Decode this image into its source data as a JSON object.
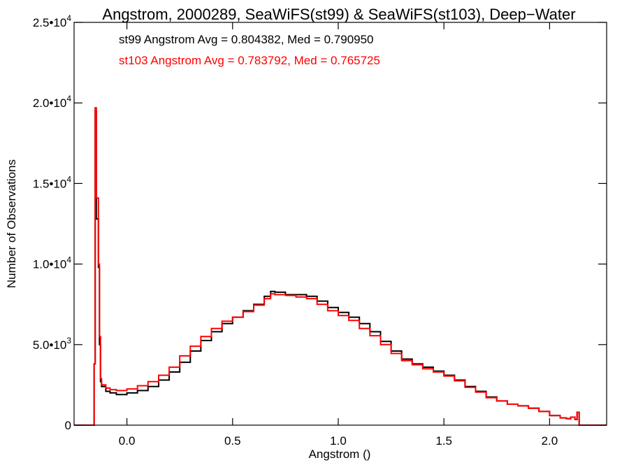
{
  "chart_data": {
    "type": "line",
    "title": "Angstrom, 2000289, SeaWiFS(st99) & SeaWiFS(st103), Deep−Water",
    "xlabel": "Angstrom ()",
    "ylabel": "Number of Observations",
    "xlim": [
      -0.25,
      2.27
    ],
    "ylim": [
      0,
      25000
    ],
    "x_ticks": [
      0.0,
      0.5,
      1.0,
      1.5,
      2.0
    ],
    "x_tick_labels": [
      "0.0",
      "0.5",
      "1.0",
      "1.5",
      "2.0"
    ],
    "y_ticks": [
      0,
      5000,
      10000,
      15000,
      20000,
      25000
    ],
    "y_tick_labels": [
      {
        "mantissa": "0",
        "exponent": ""
      },
      {
        "mantissa": "5.0•10",
        "exponent": "3"
      },
      {
        "mantissa": "1.0•10",
        "exponent": "4"
      },
      {
        "mantissa": "1.5•10",
        "exponent": "4"
      },
      {
        "mantissa": "2.0•10",
        "exponent": "4"
      },
      {
        "mantissa": "2.5•10",
        "exponent": "4"
      }
    ],
    "grid": false,
    "annotations": [
      {
        "text": "st99 Angstrom Avg = 0.804382, Med = 0.790950",
        "color": "#000000"
      },
      {
        "text": "st103 Angstrom Avg = 0.783792, Med = 0.765725",
        "color": "#ff0000"
      }
    ],
    "series": [
      {
        "color": "#000000",
        "step": true,
        "points": [
          [
            -0.25,
            0
          ],
          [
            -0.16,
            0
          ],
          [
            -0.155,
            3800
          ],
          [
            -0.15,
            19500
          ],
          [
            -0.145,
            12800
          ],
          [
            -0.14,
            12800
          ],
          [
            -0.135,
            9800
          ],
          [
            -0.13,
            5000
          ],
          [
            -0.125,
            2700
          ],
          [
            -0.12,
            2400
          ],
          [
            -0.1,
            2100
          ],
          [
            -0.08,
            2000
          ],
          [
            -0.05,
            1900
          ],
          [
            0.0,
            2000
          ],
          [
            0.05,
            2150
          ],
          [
            0.1,
            2400
          ],
          [
            0.15,
            2800
          ],
          [
            0.2,
            3300
          ],
          [
            0.25,
            3900
          ],
          [
            0.3,
            4600
          ],
          [
            0.35,
            5250
          ],
          [
            0.4,
            5800
          ],
          [
            0.45,
            6300
          ],
          [
            0.5,
            6700
          ],
          [
            0.55,
            7100
          ],
          [
            0.6,
            7500
          ],
          [
            0.65,
            8000
          ],
          [
            0.68,
            8300
          ],
          [
            0.7,
            8250
          ],
          [
            0.75,
            8100
          ],
          [
            0.8,
            8100
          ],
          [
            0.85,
            8000
          ],
          [
            0.9,
            7700
          ],
          [
            0.95,
            7300
          ],
          [
            1.0,
            7000
          ],
          [
            1.05,
            6700
          ],
          [
            1.1,
            6300
          ],
          [
            1.15,
            5800
          ],
          [
            1.2,
            5200
          ],
          [
            1.25,
            4600
          ],
          [
            1.3,
            4100
          ],
          [
            1.35,
            3800
          ],
          [
            1.4,
            3600
          ],
          [
            1.45,
            3350
          ],
          [
            1.5,
            3100
          ],
          [
            1.55,
            2800
          ],
          [
            1.6,
            2400
          ],
          [
            1.65,
            2100
          ],
          [
            1.7,
            1750
          ],
          [
            1.75,
            1500
          ],
          [
            1.8,
            1300
          ],
          [
            1.85,
            1200
          ],
          [
            1.9,
            1050
          ],
          [
            1.95,
            850
          ],
          [
            2.0,
            600
          ],
          [
            2.05,
            450
          ],
          [
            2.08,
            400
          ],
          [
            2.1,
            500
          ],
          [
            2.12,
            350
          ],
          [
            2.13,
            800
          ],
          [
            2.14,
            0
          ],
          [
            2.27,
            0
          ]
        ]
      },
      {
        "color": "#ff0000",
        "step": true,
        "points": [
          [
            -0.25,
            0
          ],
          [
            -0.16,
            0
          ],
          [
            -0.155,
            3800
          ],
          [
            -0.15,
            19700
          ],
          [
            -0.145,
            14100
          ],
          [
            -0.14,
            14100
          ],
          [
            -0.135,
            10000
          ],
          [
            -0.13,
            5500
          ],
          [
            -0.125,
            2900
          ],
          [
            -0.12,
            2500
          ],
          [
            -0.1,
            2300
          ],
          [
            -0.08,
            2200
          ],
          [
            -0.05,
            2150
          ],
          [
            0.0,
            2250
          ],
          [
            0.05,
            2450
          ],
          [
            0.1,
            2700
          ],
          [
            0.15,
            3100
          ],
          [
            0.2,
            3600
          ],
          [
            0.25,
            4300
          ],
          [
            0.3,
            4900
          ],
          [
            0.35,
            5500
          ],
          [
            0.4,
            6000
          ],
          [
            0.45,
            6450
          ],
          [
            0.5,
            6700
          ],
          [
            0.55,
            7050
          ],
          [
            0.6,
            7450
          ],
          [
            0.65,
            7850
          ],
          [
            0.68,
            8150
          ],
          [
            0.7,
            8100
          ],
          [
            0.75,
            8050
          ],
          [
            0.8,
            7950
          ],
          [
            0.85,
            7850
          ],
          [
            0.9,
            7500
          ],
          [
            0.95,
            7100
          ],
          [
            1.0,
            6800
          ],
          [
            1.05,
            6500
          ],
          [
            1.1,
            6000
          ],
          [
            1.15,
            5550
          ],
          [
            1.2,
            5000
          ],
          [
            1.25,
            4450
          ],
          [
            1.3,
            4000
          ],
          [
            1.35,
            3750
          ],
          [
            1.4,
            3500
          ],
          [
            1.45,
            3300
          ],
          [
            1.5,
            3050
          ],
          [
            1.55,
            2750
          ],
          [
            1.6,
            2350
          ],
          [
            1.65,
            2050
          ],
          [
            1.7,
            1700
          ],
          [
            1.75,
            1500
          ],
          [
            1.8,
            1300
          ],
          [
            1.85,
            1200
          ],
          [
            1.9,
            1050
          ],
          [
            1.95,
            850
          ],
          [
            2.0,
            600
          ],
          [
            2.05,
            450
          ],
          [
            2.08,
            400
          ],
          [
            2.1,
            500
          ],
          [
            2.12,
            350
          ],
          [
            2.13,
            800
          ],
          [
            2.14,
            0
          ],
          [
            2.27,
            0
          ]
        ]
      }
    ]
  }
}
